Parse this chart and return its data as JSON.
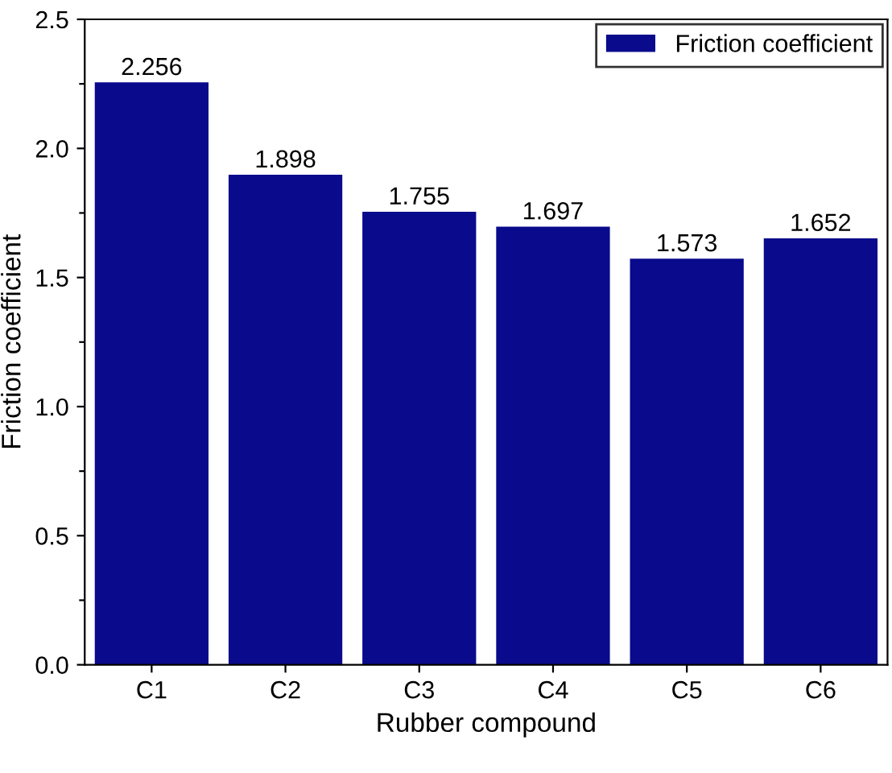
{
  "chart_data": {
    "type": "bar",
    "xlabel": "Rubber compound",
    "ylabel": "Friction coefficient",
    "categories": [
      "C1",
      "C2",
      "C3",
      "C4",
      "C5",
      "C6"
    ],
    "series": [
      {
        "name": "Friction coefficient",
        "color": "#0a0a8c",
        "values": [
          2.256,
          1.898,
          1.755,
          1.697,
          1.573,
          1.652
        ]
      }
    ],
    "data_labels": true,
    "legend": "top right",
    "grid": false,
    "ylim": [
      0,
      2.5
    ],
    "yticks": [
      {
        "value": 0,
        "label": "0.0"
      },
      {
        "value": 0.25,
        "label": null
      },
      {
        "value": 0.5,
        "label": "0.5"
      },
      {
        "value": 0.75,
        "label": null
      },
      {
        "value": 1,
        "label": "1.0"
      },
      {
        "value": 1.25,
        "label": null
      },
      {
        "value": 1.5,
        "label": "1.5"
      },
      {
        "value": 1.75,
        "label": null
      },
      {
        "value": 2,
        "label": "2.0"
      },
      {
        "value": 2.25,
        "label": null
      },
      {
        "value": 2.5,
        "label": "2.5"
      }
    ]
  }
}
